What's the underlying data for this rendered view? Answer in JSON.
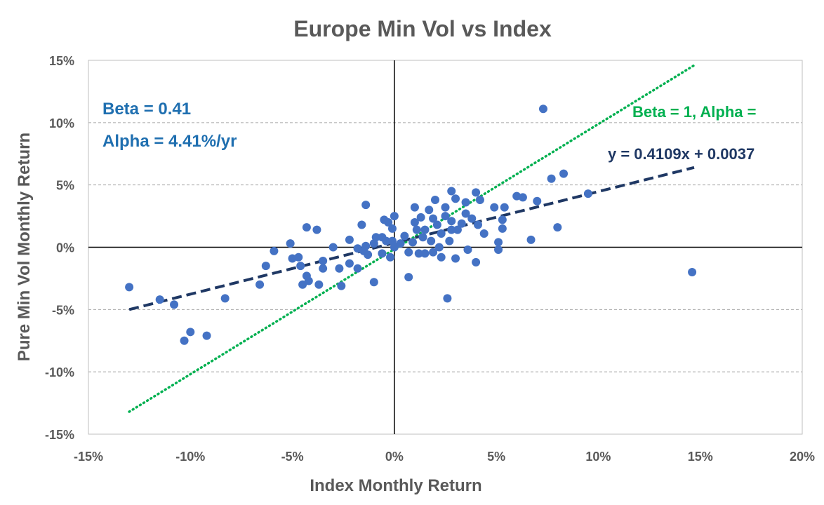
{
  "chart_data": {
    "type": "scatter",
    "title": "Europe Min Vol vs Index",
    "xlabel": "Index Monthly Return",
    "ylabel": "Pure Min Vol Monthly Return",
    "xlim": [
      -15,
      20
    ],
    "ylim": [
      -15,
      15
    ],
    "xticks": [
      -15,
      -10,
      -5,
      0,
      5,
      10,
      15,
      20
    ],
    "yticks": [
      -15,
      -10,
      -5,
      0,
      5,
      10,
      15
    ],
    "x_tick_labels": [
      "-15%",
      "-10%",
      "-5%",
      "0%",
      "5%",
      "10%",
      "15%",
      "20%"
    ],
    "y_tick_labels": [
      "-15%",
      "-10%",
      "-5%",
      "0%",
      "5%",
      "10%",
      "15%"
    ],
    "grid": "horizontal dashed",
    "colors": {
      "points": "#4472C4",
      "trend": "#1F3864",
      "beta1": "#00B050",
      "annotation_blue": "#1F6FB0",
      "equation": "#1F3864",
      "text": "#595959"
    },
    "annotations": {
      "beta": "Beta = 0.41",
      "alpha": "Alpha = 4.41%/yr",
      "beta1": "Beta = 1, Alpha =",
      "equation": "y = 0.4109x + 0.0037"
    },
    "trendline": {
      "name": "y = 0.4109x + 0.0037",
      "x": [
        -13,
        14.7
      ],
      "y": [
        -5.0,
        6.4
      ]
    },
    "beta1_line": {
      "x": [
        -13,
        14.7
      ],
      "y": [
        -13.2,
        14.6
      ]
    },
    "points": [
      [
        -13.0,
        -3.2
      ],
      [
        -11.5,
        -4.2
      ],
      [
        -10.8,
        -4.6
      ],
      [
        -10.3,
        -7.5
      ],
      [
        -10.0,
        -6.8
      ],
      [
        -9.2,
        -7.1
      ],
      [
        -8.3,
        -4.1
      ],
      [
        -6.6,
        -3.0
      ],
      [
        -6.3,
        -1.5
      ],
      [
        -5.9,
        -0.3
      ],
      [
        -5.1,
        0.3
      ],
      [
        -5.0,
        -0.9
      ],
      [
        -4.7,
        -0.8
      ],
      [
        -4.6,
        -1.5
      ],
      [
        -4.5,
        -3.0
      ],
      [
        -4.3,
        -2.3
      ],
      [
        -4.2,
        -2.7
      ],
      [
        -4.3,
        1.6
      ],
      [
        -3.8,
        1.4
      ],
      [
        -3.7,
        -3.0
      ],
      [
        -3.5,
        -1.7
      ],
      [
        -3.5,
        -1.1
      ],
      [
        -3.0,
        0.0
      ],
      [
        -2.7,
        -1.7
      ],
      [
        -2.6,
        -3.1
      ],
      [
        -2.2,
        -1.3
      ],
      [
        -2.2,
        0.6
      ],
      [
        -1.8,
        -1.7
      ],
      [
        -1.8,
        -0.1
      ],
      [
        -1.6,
        1.8
      ],
      [
        -1.5,
        -0.3
      ],
      [
        -1.4,
        0.1
      ],
      [
        -1.4,
        3.4
      ],
      [
        -1.3,
        -0.6
      ],
      [
        -1.0,
        0.3
      ],
      [
        -1.0,
        -2.8
      ],
      [
        -0.9,
        0.8
      ],
      [
        -0.6,
        0.8
      ],
      [
        -0.6,
        -0.5
      ],
      [
        -0.5,
        2.2
      ],
      [
        -0.4,
        0.5
      ],
      [
        -0.3,
        2.0
      ],
      [
        -0.2,
        -0.8
      ],
      [
        -0.1,
        0.5
      ],
      [
        -0.1,
        1.5
      ],
      [
        0.0,
        0.0
      ],
      [
        0.0,
        2.5
      ],
      [
        0.3,
        0.3
      ],
      [
        0.5,
        0.9
      ],
      [
        0.7,
        -0.4
      ],
      [
        0.7,
        -2.4
      ],
      [
        0.9,
        0.4
      ],
      [
        1.0,
        2.0
      ],
      [
        1.0,
        3.2
      ],
      [
        1.1,
        1.4
      ],
      [
        1.2,
        -0.5
      ],
      [
        1.3,
        2.4
      ],
      [
        1.4,
        0.8
      ],
      [
        1.5,
        1.4
      ],
      [
        1.5,
        -0.5
      ],
      [
        1.7,
        3.0
      ],
      [
        1.8,
        0.5
      ],
      [
        1.9,
        2.3
      ],
      [
        1.9,
        -0.4
      ],
      [
        2.0,
        3.8
      ],
      [
        2.1,
        1.8
      ],
      [
        2.2,
        0.0
      ],
      [
        2.3,
        -0.8
      ],
      [
        2.3,
        1.1
      ],
      [
        2.5,
        2.5
      ],
      [
        2.5,
        3.2
      ],
      [
        2.6,
        -4.1
      ],
      [
        2.7,
        0.5
      ],
      [
        2.8,
        1.4
      ],
      [
        2.8,
        2.1
      ],
      [
        2.8,
        4.5
      ],
      [
        3.0,
        3.9
      ],
      [
        3.0,
        -0.9
      ],
      [
        3.1,
        1.4
      ],
      [
        3.3,
        1.9
      ],
      [
        3.5,
        2.7
      ],
      [
        3.5,
        3.6
      ],
      [
        3.6,
        -0.2
      ],
      [
        3.8,
        2.3
      ],
      [
        4.0,
        4.4
      ],
      [
        4.0,
        -1.2
      ],
      [
        4.1,
        1.8
      ],
      [
        4.2,
        3.8
      ],
      [
        4.4,
        1.1
      ],
      [
        4.9,
        3.2
      ],
      [
        5.1,
        -0.2
      ],
      [
        5.1,
        0.4
      ],
      [
        5.3,
        1.5
      ],
      [
        5.3,
        2.2
      ],
      [
        5.4,
        3.2
      ],
      [
        6.0,
        4.1
      ],
      [
        6.3,
        4.0
      ],
      [
        6.7,
        0.6
      ],
      [
        7.0,
        3.7
      ],
      [
        7.3,
        11.1
      ],
      [
        7.7,
        5.5
      ],
      [
        8.0,
        1.6
      ],
      [
        8.3,
        5.9
      ],
      [
        9.5,
        4.3
      ],
      [
        14.6,
        -2.0
      ]
    ]
  }
}
